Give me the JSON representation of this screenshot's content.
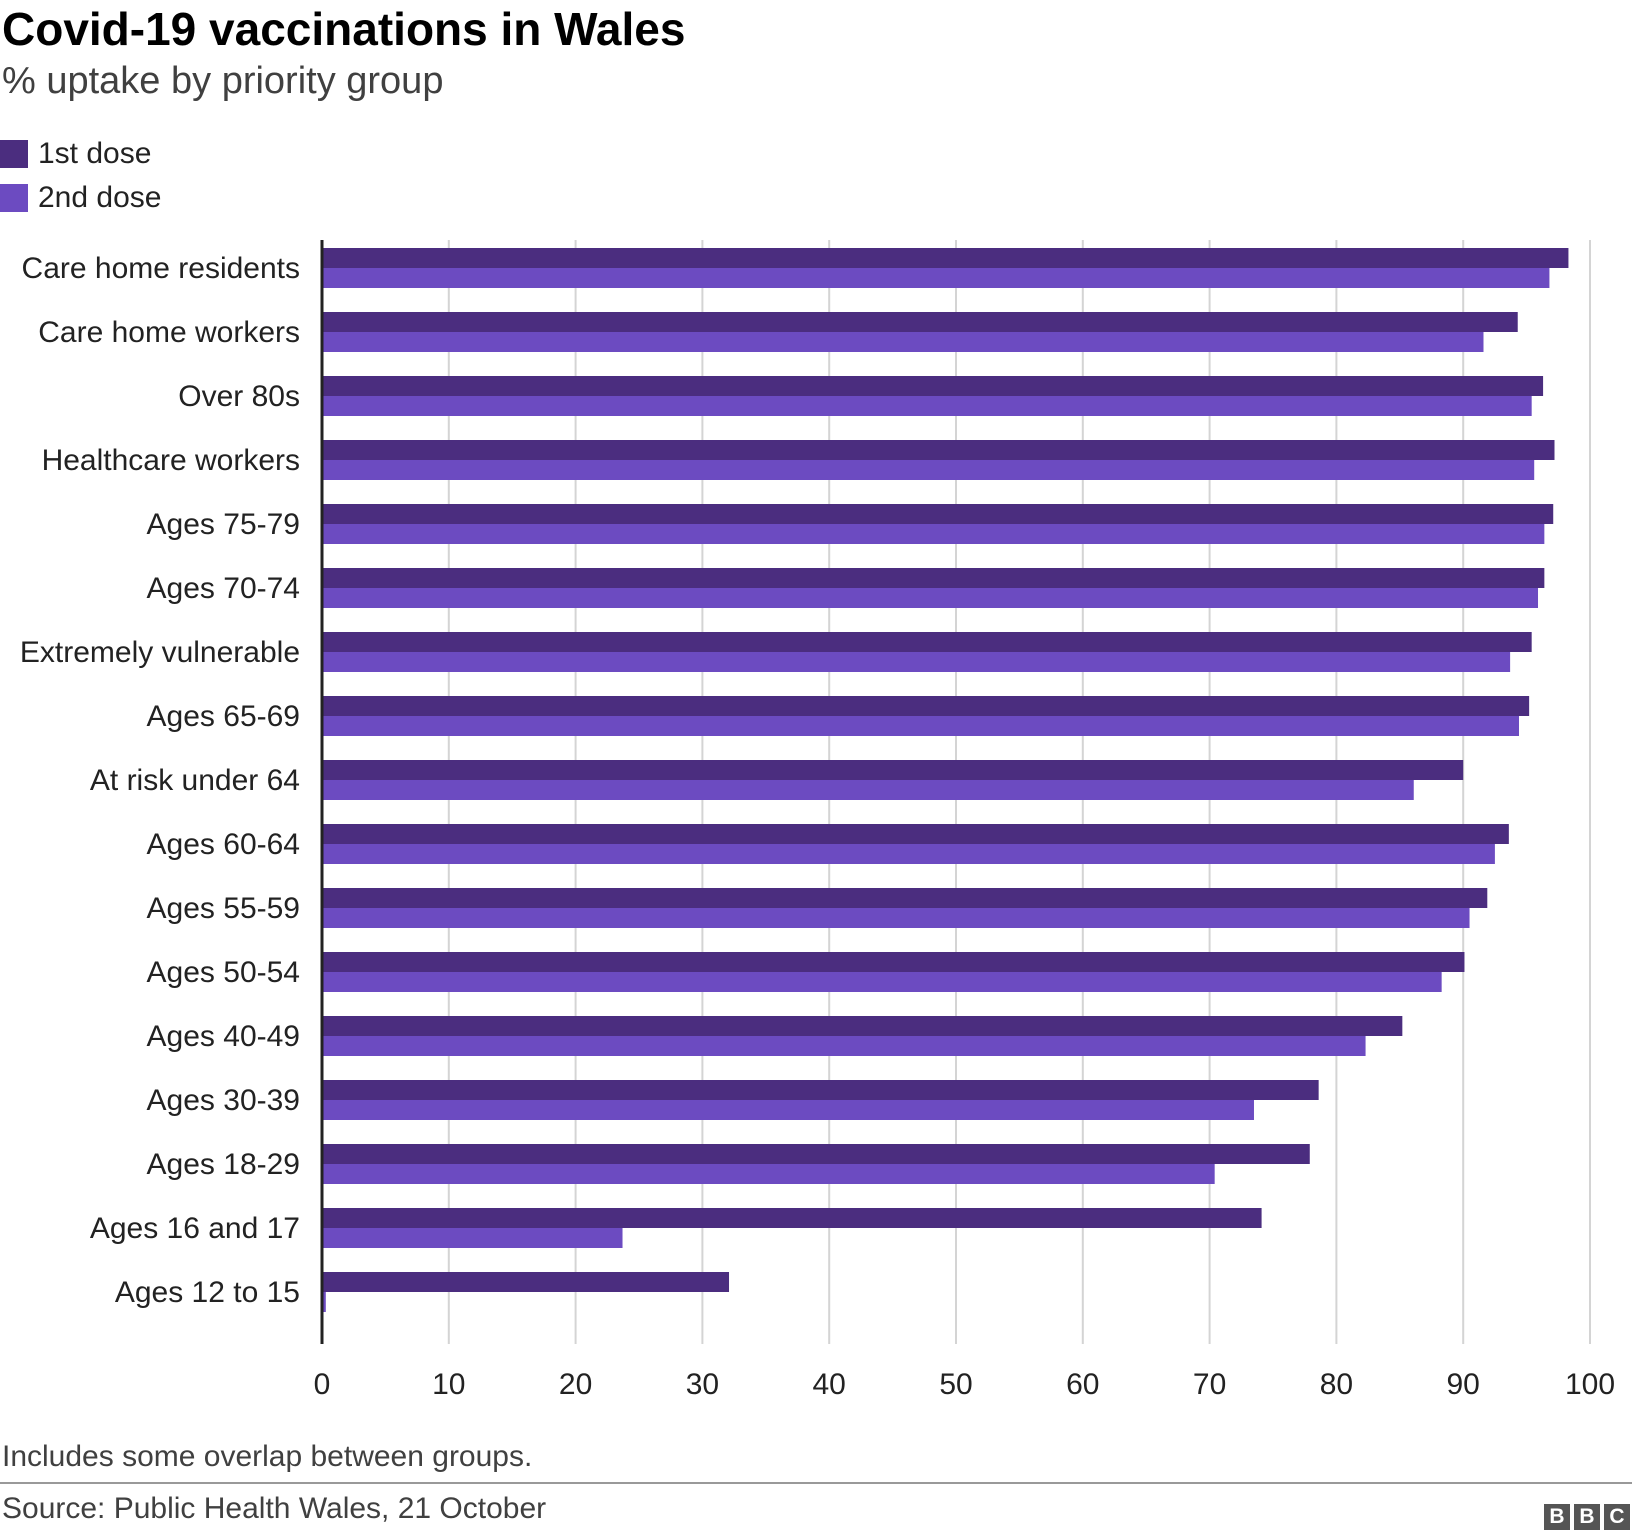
{
  "chart_data": {
    "type": "bar",
    "orientation": "horizontal",
    "title": "Covid-19 vaccinations in Wales",
    "subtitle": "% uptake by priority group",
    "categories": [
      "Care home residents",
      "Care home workers",
      "Over 80s",
      "Healthcare workers",
      "Ages 75-79",
      "Ages 70-74",
      "Extremely vulnerable",
      "Ages 65-69",
      "At risk under 64",
      "Ages 60-64",
      "Ages 55-59",
      "Ages 50-54",
      "Ages 40-49",
      "Ages 30-39",
      "Ages 18-29",
      "Ages 16 and 17",
      "Ages 12 to 15"
    ],
    "series": [
      {
        "name": "1st dose",
        "color": "#4b2d7f",
        "values": [
          98.3,
          94.3,
          96.3,
          97.2,
          97.1,
          96.4,
          95.4,
          95.2,
          90.0,
          93.6,
          91.9,
          90.1,
          85.2,
          78.6,
          77.9,
          74.1,
          32.1
        ]
      },
      {
        "name": "2nd dose",
        "color": "#6c4bc1",
        "values": [
          96.8,
          91.6,
          95.4,
          95.6,
          96.4,
          95.9,
          93.7,
          94.4,
          86.1,
          92.5,
          90.5,
          88.3,
          82.3,
          73.5,
          70.4,
          23.7,
          0.3
        ]
      }
    ],
    "xlim": [
      0,
      100
    ],
    "xticks": [
      0,
      10,
      20,
      30,
      40,
      50,
      60,
      70,
      80,
      90,
      100
    ],
    "grid": true,
    "legend_position": "top-left"
  },
  "footnote": "Includes some overlap between groups.",
  "source": "Source: Public Health Wales, 21 October",
  "logo": {
    "letters": [
      "B",
      "B",
      "C"
    ]
  }
}
